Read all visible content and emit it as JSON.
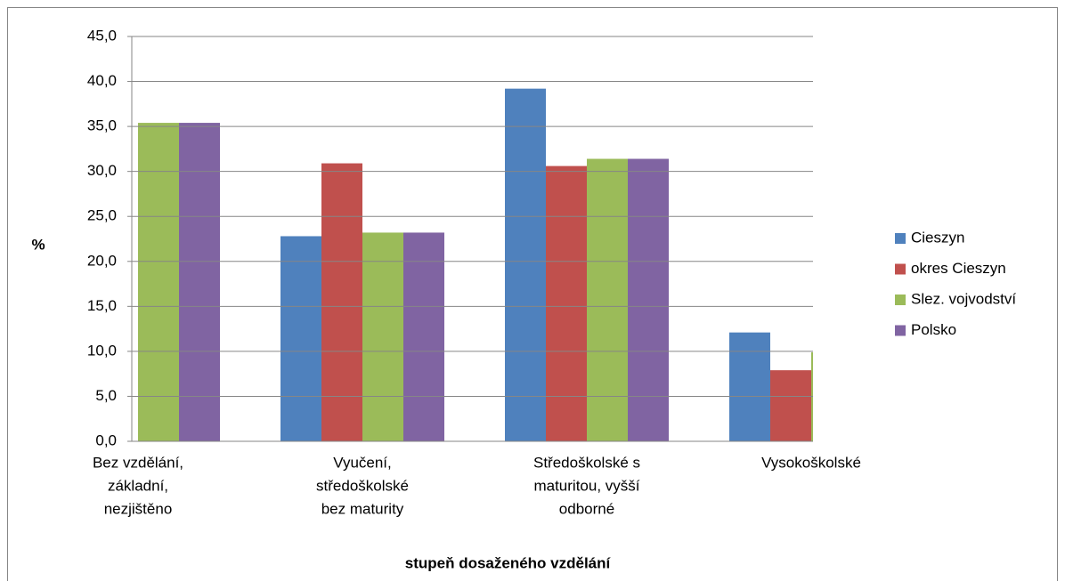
{
  "chart_data": {
    "type": "bar",
    "x_label": "stupeň dosaženého vzdělání",
    "y_label": "%",
    "categories": [
      [
        "Bez vzdělání,",
        "základní,",
        "nezjištěno"
      ],
      [
        "Vyučení,",
        "středoškolské",
        "bez maturity"
      ],
      [
        "Středoškolské s",
        "maturitou, vyšší",
        "odborné"
      ],
      [
        "Vysokoškolské"
      ]
    ],
    "series": [
      {
        "name": "Cieszyn",
        "color": "#4f81bd",
        "values": [
          null,
          22.8,
          39.2,
          12.1
        ]
      },
      {
        "name": "okres Cieszyn",
        "color": "#c0504d",
        "values": [
          null,
          30.9,
          30.6,
          7.9
        ]
      },
      {
        "name": "Slez. vojvodství",
        "color": "#9bbb59",
        "values": [
          35.4,
          23.2,
          31.4,
          9.9
        ]
      },
      {
        "name": "Polsko",
        "color": "#8064a2",
        "values": [
          35.4,
          23.2,
          31.4,
          null
        ]
      }
    ],
    "ylim": [
      0,
      45
    ],
    "yticks": [
      {
        "value": 0,
        "label": "0,0"
      },
      {
        "value": 5,
        "label": "5,0"
      },
      {
        "value": 10,
        "label": "10,0"
      },
      {
        "value": 15,
        "label": "15,0"
      },
      {
        "value": 20,
        "label": "20,0"
      },
      {
        "value": 25,
        "label": "25,0"
      },
      {
        "value": 30,
        "label": "30,0"
      },
      {
        "value": 35,
        "label": "35,0"
      },
      {
        "value": 40,
        "label": "40,0"
      },
      {
        "value": 45,
        "label": "45,0"
      }
    ],
    "grid": true,
    "legend": "right"
  }
}
